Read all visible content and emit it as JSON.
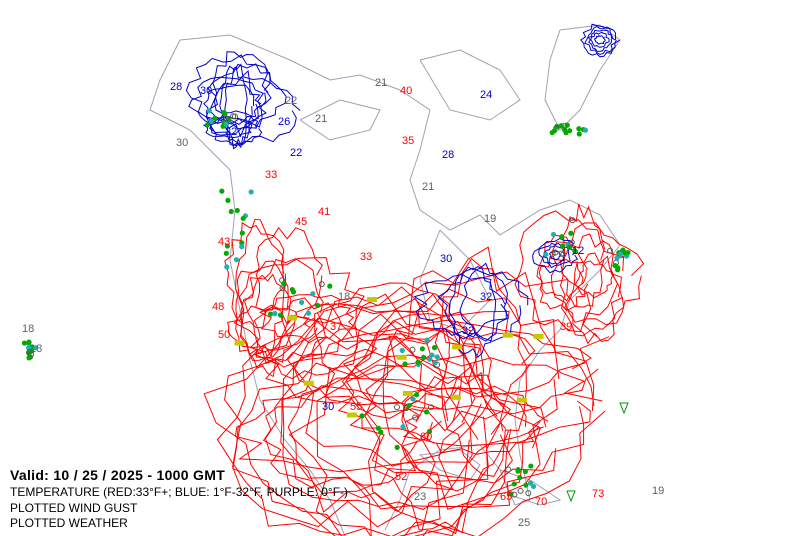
{
  "valid_time": "Valid: 10 / 25 / 2025  -  1000 GMT",
  "legend": {
    "temperature": "TEMPERATURE (RED:33°F+; BLUE: 1°F-32°F, PURPLE: 0°F-)",
    "wind_gust": "PLOTTED WIND GUST",
    "weather": "PLOTTED WEATHER"
  },
  "colors": {
    "warm_contour": "#ff0000",
    "cold_contour": "#0000cc",
    "coastline": "#a0a0b4",
    "rain_dot": "#00aa00",
    "snow_dot": "#20b0b0",
    "fog_symbol": "#c8c800",
    "gust_label": "#606060"
  },
  "map_labels": {
    "red": [
      "40",
      "35",
      "33",
      "45",
      "41",
      "43",
      "48",
      "50",
      "55",
      "60",
      "65",
      "70",
      "73",
      "33",
      "37",
      "39",
      "52"
    ],
    "blue": [
      "28",
      "30",
      "32",
      "22",
      "26",
      "12",
      "30",
      "32",
      "28",
      "24",
      "32",
      "30"
    ],
    "gray": [
      "21",
      "22",
      "21",
      "30",
      "18",
      "18",
      "25",
      "23",
      "19",
      "21",
      "19",
      "18"
    ]
  }
}
